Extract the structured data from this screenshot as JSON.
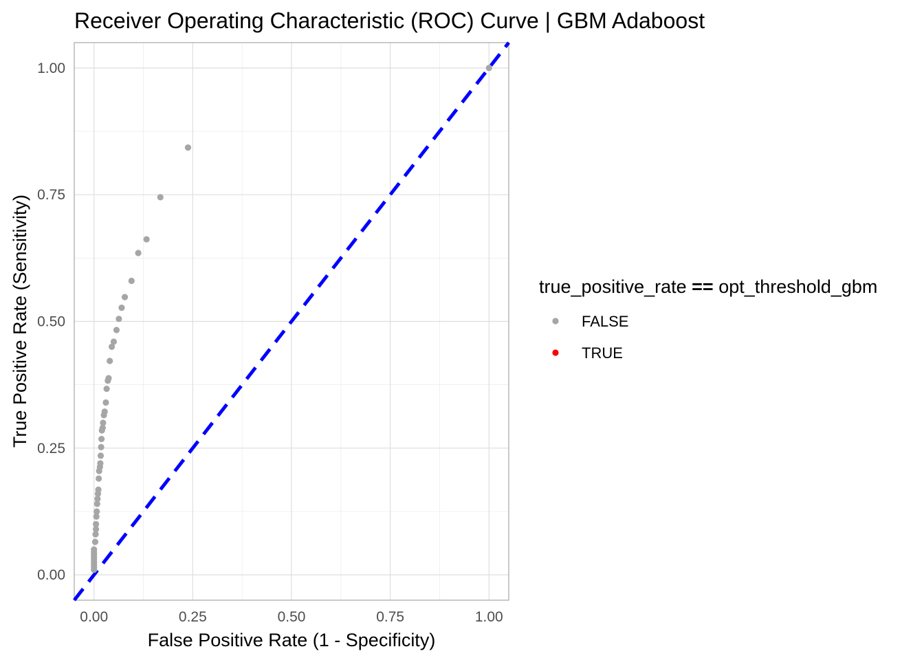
{
  "chart_data": {
    "type": "scatter",
    "title": "Receiver Operating Characteristic (ROC) Curve | GBM Adaboost",
    "xlabel": "False Positive Rate (1 - Specificity)",
    "ylabel": "True Positive Rate (Sensitivity)",
    "xlim": [
      -0.05,
      1.05
    ],
    "ylim": [
      -0.05,
      1.05
    ],
    "x_ticks": [
      0.0,
      0.25,
      0.5,
      0.75,
      1.0
    ],
    "y_ticks": [
      0.0,
      0.25,
      0.5,
      0.75,
      1.0
    ],
    "x_tick_labels": [
      "0.00",
      "0.25",
      "0.50",
      "0.75",
      "1.00"
    ],
    "y_tick_labels": [
      "0.00",
      "0.25",
      "0.50",
      "0.75",
      "1.00"
    ],
    "grid": true,
    "legend": {
      "title_left": "true_positive_rate",
      "title_operator": "==",
      "title_right": "opt_threshold_gbm",
      "placement": "right",
      "entries": [
        {
          "label": "FALSE",
          "color": "#a6a6a6"
        },
        {
          "label": "TRUE",
          "color": "#ff0000"
        }
      ]
    },
    "reference_line": {
      "from": [
        -0.05,
        -0.05
      ],
      "to": [
        1.05,
        1.05
      ],
      "color": "#0000ff",
      "style": "dashed"
    },
    "series": [
      {
        "name": "FALSE",
        "color": "#a6a6a6",
        "points": [
          [
            0.0,
            0.01
          ],
          [
            0.0,
            0.015
          ],
          [
            0.0,
            0.02
          ],
          [
            0.0,
            0.025
          ],
          [
            0.0,
            0.03
          ],
          [
            0.0,
            0.035
          ],
          [
            0.0,
            0.04
          ],
          [
            0.0,
            0.045
          ],
          [
            0.0,
            0.05
          ],
          [
            0.003,
            0.065
          ],
          [
            0.004,
            0.08
          ],
          [
            0.005,
            0.09
          ],
          [
            0.005,
            0.1
          ],
          [
            0.006,
            0.115
          ],
          [
            0.007,
            0.125
          ],
          [
            0.008,
            0.14
          ],
          [
            0.009,
            0.15
          ],
          [
            0.01,
            0.16
          ],
          [
            0.011,
            0.168
          ],
          [
            0.012,
            0.19
          ],
          [
            0.013,
            0.205
          ],
          [
            0.015,
            0.213
          ],
          [
            0.016,
            0.22
          ],
          [
            0.017,
            0.235
          ],
          [
            0.018,
            0.252
          ],
          [
            0.019,
            0.268
          ],
          [
            0.02,
            0.285
          ],
          [
            0.022,
            0.29
          ],
          [
            0.023,
            0.3
          ],
          [
            0.025,
            0.315
          ],
          [
            0.027,
            0.322
          ],
          [
            0.03,
            0.34
          ],
          [
            0.032,
            0.367
          ],
          [
            0.035,
            0.383
          ],
          [
            0.037,
            0.388
          ],
          [
            0.04,
            0.422
          ],
          [
            0.045,
            0.45
          ],
          [
            0.05,
            0.46
          ],
          [
            0.057,
            0.483
          ],
          [
            0.063,
            0.505
          ],
          [
            0.07,
            0.527
          ],
          [
            0.078,
            0.548
          ],
          [
            0.095,
            0.58
          ],
          [
            0.112,
            0.635
          ],
          [
            0.133,
            0.662
          ],
          [
            0.168,
            0.745
          ],
          [
            0.238,
            0.843
          ],
          [
            1.0,
            1.0
          ]
        ]
      },
      {
        "name": "TRUE",
        "color": "#ff0000",
        "points": []
      }
    ]
  }
}
